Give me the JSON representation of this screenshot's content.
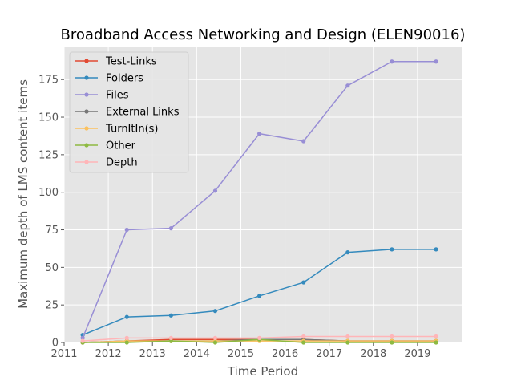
{
  "chart_data": {
    "type": "line",
    "title": "Broadband Access Networking and Design (ELEN90016)",
    "xlabel": "Time Period",
    "ylabel": "Maximum depth of LMS content items",
    "xlim": [
      2011,
      2020
    ],
    "ylim": [
      0,
      197
    ],
    "xticks": [
      2011,
      2012,
      2013,
      2014,
      2015,
      2016,
      2017,
      2018,
      2019
    ],
    "yticks": [
      0,
      25,
      50,
      75,
      100,
      125,
      150,
      175
    ],
    "grid": true,
    "legend_position": "upper-left",
    "x": [
      2011.42,
      2012.42,
      2013.42,
      2014.42,
      2015.42,
      2016.42,
      2017.42,
      2018.42,
      2019.42
    ],
    "series": [
      {
        "name": "Test-Links",
        "color": "#E24A33",
        "values": [
          0,
          1,
          2,
          2,
          2,
          2,
          1,
          1,
          1
        ]
      },
      {
        "name": "Folders",
        "color": "#348ABD",
        "values": [
          5,
          17,
          18,
          21,
          31,
          40,
          60,
          62,
          62
        ]
      },
      {
        "name": "Files",
        "color": "#988ED5",
        "values": [
          3,
          75,
          76,
          101,
          139,
          134,
          171,
          187,
          187
        ]
      },
      {
        "name": "External Links",
        "color": "#777777",
        "values": [
          0,
          1,
          1,
          1,
          2,
          2,
          1,
          1,
          1
        ]
      },
      {
        "name": "TurnItIn(s)",
        "color": "#FBC15E",
        "values": [
          0,
          1,
          1,
          1,
          1,
          1,
          1,
          1,
          1
        ]
      },
      {
        "name": "Other",
        "color": "#8EBA42",
        "values": [
          0,
          0,
          1,
          0,
          2,
          0,
          0,
          0,
          0
        ]
      },
      {
        "name": "Depth",
        "color": "#FFB5B8",
        "values": [
          1,
          3,
          3,
          3,
          3,
          4,
          4,
          4,
          4
        ]
      }
    ],
    "colors": {
      "plot_bg": "#E5E5E5",
      "grid": "#FFFFFF",
      "text": "#555555"
    }
  }
}
